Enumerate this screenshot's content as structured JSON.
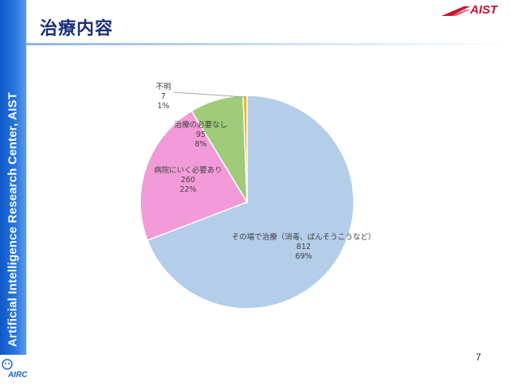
{
  "slide": {
    "title": "治療内容",
    "sidebar_text": "Artificial Intelligence Research Center, AIST",
    "brand_logo": "AIST",
    "airc_logo": "AIRC",
    "page_number": "7",
    "colors": {
      "sidebar": "#1a63d0",
      "title": "#1a2f7a",
      "brand": "#c8102e"
    }
  },
  "chart_data": {
    "type": "pie",
    "slices": [
      {
        "label": "その場で治療（消毒、ばんそうこうなど）",
        "value": 812,
        "percent": "69%",
        "color": "#b4cde9"
      },
      {
        "label": "病院にいく必要あり",
        "value": 260,
        "percent": "22%",
        "color": "#f39ad8"
      },
      {
        "label": "治療の必要なし",
        "value": 95,
        "percent": "8%",
        "color": "#9fcb7a"
      },
      {
        "label": "不明",
        "value": 7,
        "percent": "1%",
        "color": "#f0b323"
      }
    ]
  }
}
